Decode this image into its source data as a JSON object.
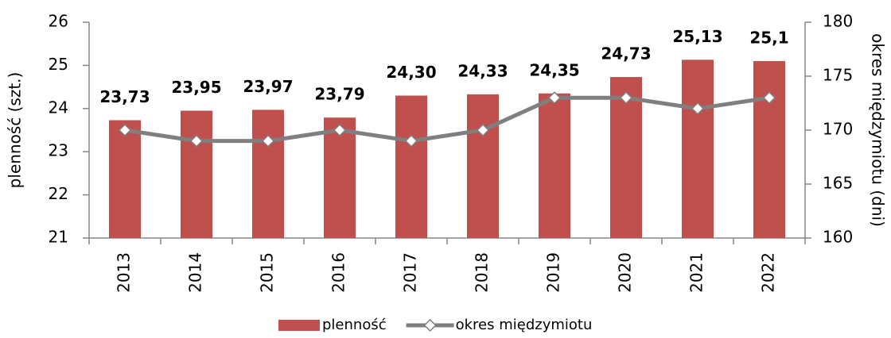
{
  "chart_data": {
    "type": "bar",
    "y_label": "plenność (szt.)",
    "y2_label": "okres międzymiotu (dni)",
    "categories": [
      "2013",
      "2014",
      "2015",
      "2016",
      "2017",
      "2018",
      "2019",
      "2020",
      "2021",
      "2022"
    ],
    "series": [
      {
        "name": "plenność",
        "type": "bar",
        "color": "#c0504d",
        "values": [
          23.73,
          23.95,
          23.97,
          23.79,
          24.3,
          24.33,
          24.35,
          24.73,
          25.13,
          25.1
        ],
        "value_labels": [
          "23,73",
          "23,95",
          "23,97",
          "23,79",
          "24,30",
          "24,33",
          "24,35",
          "24,73",
          "25,13",
          "25,1"
        ]
      },
      {
        "name": "okres międzymiotu",
        "type": "line",
        "color": "#7f7f7f",
        "axis": "y2",
        "values": [
          170,
          169,
          169,
          170,
          169,
          170,
          173,
          173,
          172,
          173
        ]
      }
    ],
    "ylim": [
      21,
      26
    ],
    "yticks": [
      21,
      22,
      23,
      24,
      25,
      26
    ],
    "y2lim": [
      160,
      180
    ],
    "y2ticks": [
      160,
      165,
      170,
      175,
      180
    ],
    "grid": false
  }
}
